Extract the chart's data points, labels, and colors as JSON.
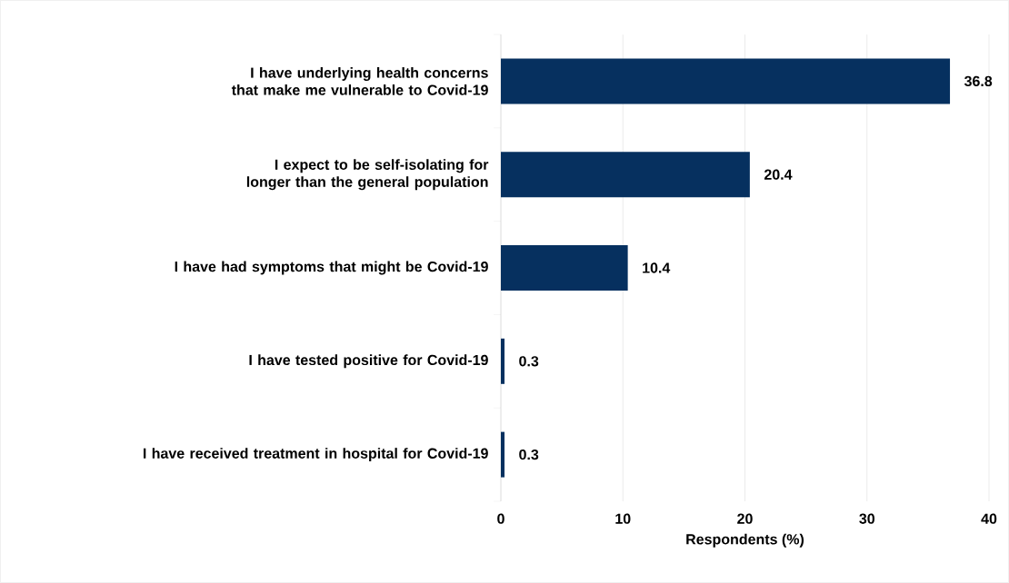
{
  "chart_data": {
    "type": "bar",
    "orientation": "horizontal",
    "xlabel": "Respondents (%)",
    "categories": [
      "I have underlying health concerns that make me vulnerable to Covid-19",
      "I expect to be self-isolating for longer than the general population",
      "I have had symptoms that might be Covid-19",
      "I have tested positive for Covid-19",
      "I have received treatment in hospital for Covid-19"
    ],
    "values": [
      36.8,
      20.4,
      10.4,
      0.3,
      0.3
    ],
    "color": "#06305f",
    "xlim": [
      0,
      40
    ],
    "xticks": [
      0,
      10,
      20,
      30,
      40
    ],
    "grid": "x",
    "data_labels": true
  }
}
